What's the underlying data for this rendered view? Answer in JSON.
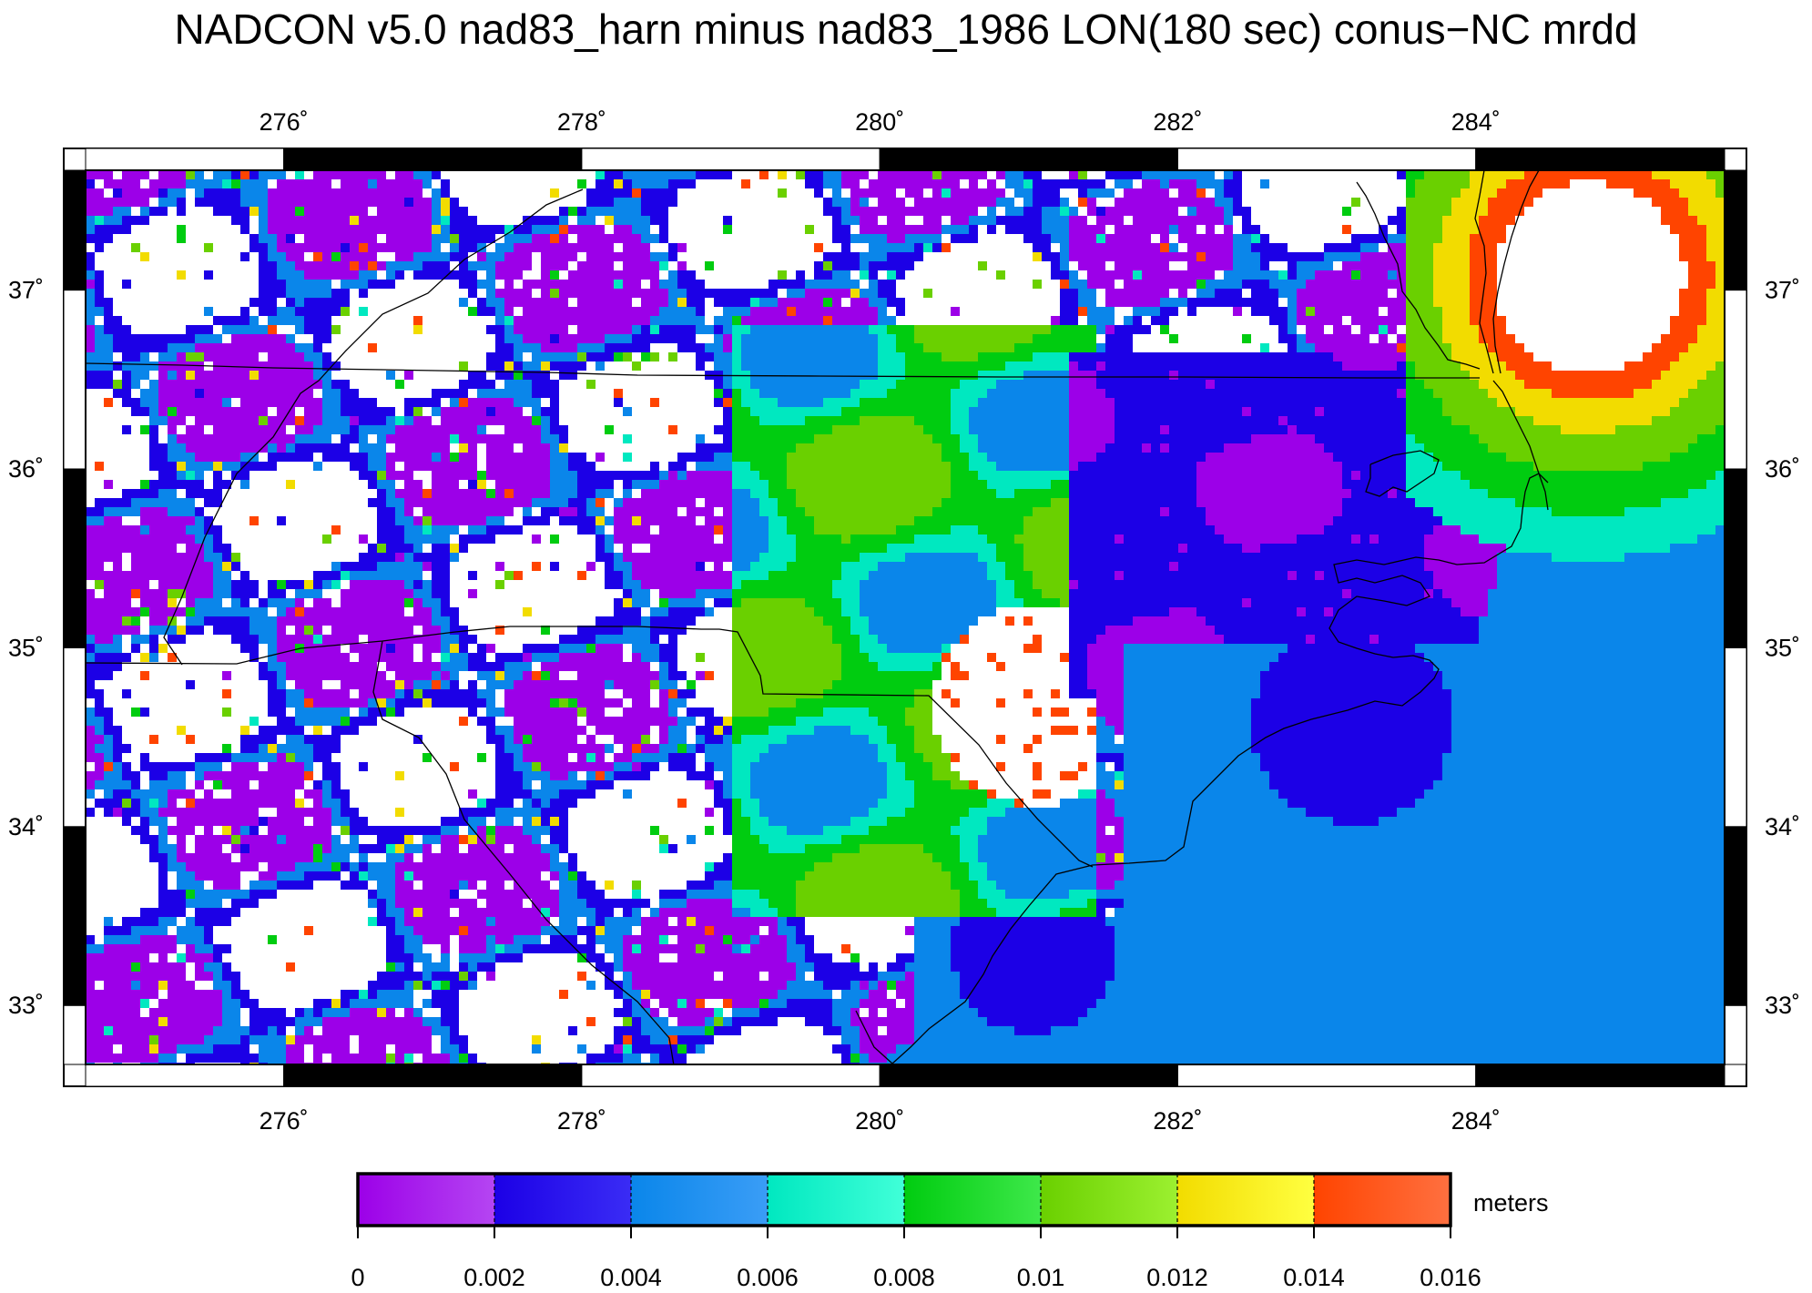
{
  "title": "NADCON v5.0 nad83_harn minus nad83_1986 LON(180 sec) conus−NC mrdd",
  "map": {
    "lon_range": [
      274.67,
      285.67
    ],
    "lat_range": [
      32.67,
      37.67
    ],
    "lon_ticks": [
      276,
      278,
      280,
      282,
      284
    ],
    "lat_ticks": [
      33,
      34,
      35,
      36,
      37
    ],
    "lon_tick_labels": [
      "276˚",
      "278˚",
      "280˚",
      "282˚",
      "284˚"
    ],
    "lat_tick_labels": [
      "33˚",
      "34˚",
      "35˚",
      "36˚",
      "37˚"
    ],
    "frame_interval_deg": 2,
    "colors": {
      "no_data_high": "#ffffff",
      "coastline": "#000000"
    }
  },
  "legend": {
    "unit_label": "meters",
    "boundaries": [
      0,
      0.002,
      0.004,
      0.006,
      0.008,
      0.01,
      0.012,
      0.014,
      0.016
    ],
    "boundary_labels": [
      "0",
      "0.002",
      "0.004",
      "0.006",
      "0.008",
      "0.01",
      "0.012",
      "0.014",
      "0.016"
    ],
    "bins": [
      {
        "range": [
          0,
          0.002
        ],
        "colors": [
          "#9c00e8",
          "#b545f2"
        ]
      },
      {
        "range": [
          0.002,
          0.004
        ],
        "colors": [
          "#1c00e6",
          "#3a2cf5"
        ]
      },
      {
        "range": [
          0.004,
          0.006
        ],
        "colors": [
          "#0a86ea",
          "#3a9df6"
        ]
      },
      {
        "range": [
          0.006,
          0.008
        ],
        "colors": [
          "#00e8c0",
          "#40ffd8"
        ]
      },
      {
        "range": [
          0.008,
          0.01
        ],
        "colors": [
          "#00cc10",
          "#3ee84a"
        ]
      },
      {
        "range": [
          0.01,
          0.012
        ],
        "colors": [
          "#6ad000",
          "#9cf030"
        ]
      },
      {
        "range": [
          0.012,
          0.014
        ],
        "colors": [
          "#f2dc00",
          "#ffff40"
        ]
      },
      {
        "range": [
          0.014,
          0.016
        ],
        "colors": [
          "#ff4400",
          "#ff7040"
        ]
      }
    ]
  }
}
